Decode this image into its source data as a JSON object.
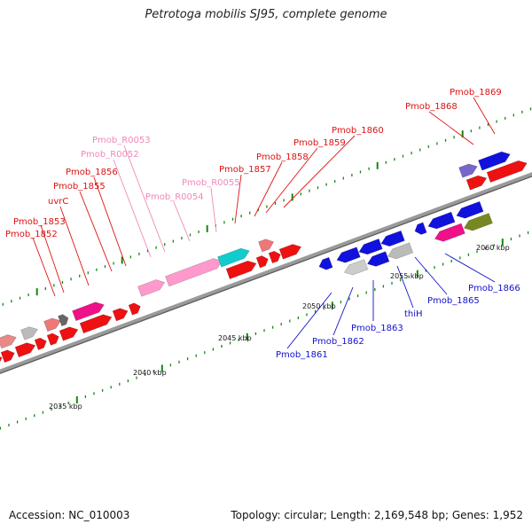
{
  "title": "Petrotoga mobilis SJ95, complete genome",
  "footer": {
    "accession": "Accession: NC_010003",
    "topology": "Topology: circular; Length: 2,169,548 bp; Genes: 1,952"
  },
  "colors": {
    "forward_label": "#dd1111",
    "rna_label": "#ee88bb",
    "reverse_label": "#1111cc",
    "forward_cds": "#ee1111",
    "reverse_cds": "#1111dd",
    "track": "#909090",
    "tick": "#118811"
  },
  "kbp_labels": [
    "2035 kbp",
    "2040 kbp",
    "2045 kbp",
    "2050 kbp",
    "2055 kbp",
    "2060 kbp"
  ],
  "gene_labels": {
    "forward": [
      "Pmob_1852",
      "Pmob_1853",
      "uvrC",
      "Pmob_1855",
      "Pmob_1856",
      "Pmob_1857",
      "Pmob_1858",
      "Pmob_1859",
      "Pmob_1860",
      "Pmob_1868",
      "Pmob_1869"
    ],
    "rna": [
      "Pmob_R0053",
      "Pmob_R0052",
      "Pmob_R0054",
      "Pmob_R0055"
    ],
    "reverse": [
      "Pmob_1861",
      "Pmob_1862",
      "Pmob_1863",
      "thiH",
      "Pmob_1865",
      "Pmob_1866"
    ]
  }
}
